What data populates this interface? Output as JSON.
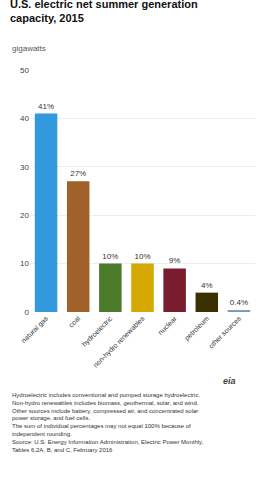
{
  "chart_data": {
    "type": "bar",
    "title": "U.S. electric net summer generation\ncapacity, 2015",
    "subtitle": "gigawatts",
    "categories": [
      "natural gas",
      "coal",
      "hydroelectric",
      "non-hydro renewables",
      "nuclear",
      "petroleum",
      "other sources"
    ],
    "values": [
      41,
      27,
      10,
      10,
      9,
      4,
      0.4
    ],
    "value_labels": [
      "41%",
      "27%",
      "10%",
      "10%",
      "9%",
      "4%",
      "0.4%"
    ],
    "data_labels": true,
    "colors": [
      "#3399DD",
      "#A0612A",
      "#4A7A2A",
      "#D4A800",
      "#7A1C2E",
      "#3B3000",
      "#7799BB"
    ],
    "ylim": [
      0,
      50
    ],
    "yticks": [
      0,
      10,
      20,
      30,
      40,
      50
    ],
    "grid": true,
    "annotations": [
      "eia",
      "Hydroelectric includes conventional and pumped storage hydroelectric.",
      "Non-hydro renewables includes biomass, geothermal, solar, and wind.",
      "Other sources include battery, compressed air, and concentrated solar",
      "power storage, and fuel cells.",
      "The sum of individual percentages may not equal 100% because of",
      "independent rounding.",
      "Source: U.S. Energy Information Administration, Electric Power Monthly,",
      "Tables 6.2A, B, and C, February 2016"
    ]
  }
}
